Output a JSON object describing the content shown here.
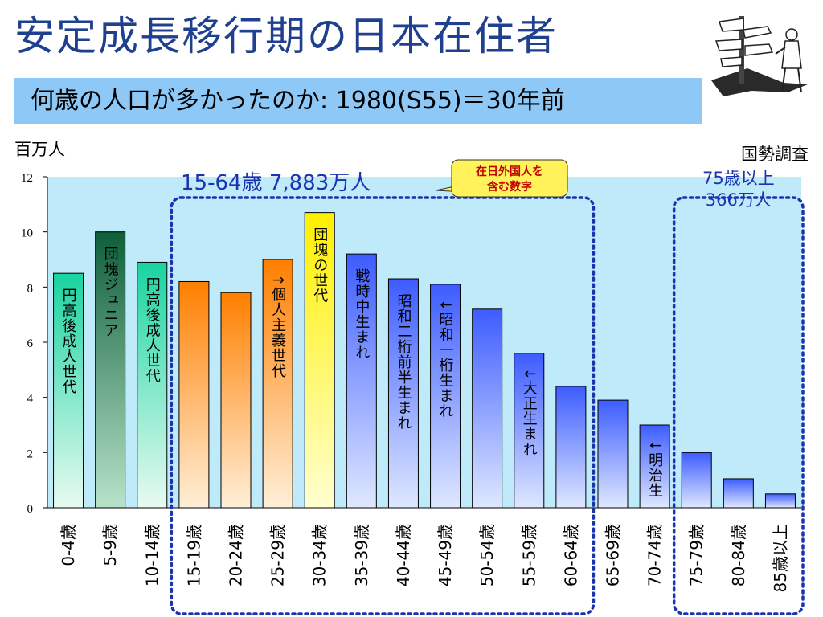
{
  "title": "安定成長移行期の日本在住者",
  "subtitle": "何歳の人口が多かったのか: 1980(S55)＝30年前",
  "icons": {
    "clipart": "signpost-person-icon"
  },
  "chart_data": {
    "type": "bar",
    "ylabel": "百万人",
    "source": "国勢調査",
    "ylim": [
      0,
      12
    ],
    "yticks": [
      0,
      2,
      4,
      6,
      8,
      10,
      12
    ],
    "grid": false,
    "categories": [
      "0-4歳",
      "5-9歳",
      "10-14歳",
      "15-19歳",
      "20-24歳",
      "25-29歳",
      "30-34歳",
      "35-39歳",
      "40-44歳",
      "45-49歳",
      "50-54歳",
      "55-59歳",
      "60-64歳",
      "65-69歳",
      "70-74歳",
      "75-79歳",
      "80-84歳",
      "85歳以上"
    ],
    "values": [
      8.5,
      10.0,
      8.9,
      8.2,
      7.8,
      9.0,
      10.7,
      9.2,
      8.3,
      8.1,
      7.2,
      5.6,
      4.4,
      3.9,
      3.0,
      2.0,
      1.05,
      0.5
    ],
    "bar_labels": [
      "円高後成人世代",
      "団塊ジュニア",
      "円高後成人世代",
      "",
      "",
      "↑個人主義世代",
      "団塊の世代",
      "戦時中生まれ",
      "昭和二桁前半生まれ",
      "↓昭和一桁生まれ",
      "",
      "↓大正生まれ",
      "",
      "",
      "↓明治生",
      "",
      "",
      ""
    ],
    "bar_fills": [
      "mint",
      "darkgreen",
      "mint",
      "orange",
      "orange",
      "orange",
      "yellow",
      "blue",
      "blue",
      "blue",
      "blue",
      "blue",
      "blue",
      "blue",
      "blue",
      "blue",
      "blue",
      "blue"
    ],
    "groups": [
      {
        "label": "15-64歳 7,883万人",
        "from": 3,
        "to": 12
      },
      {
        "label_line1": "75歳以上",
        "label_line2": "366万人",
        "from": 15,
        "to": 17
      }
    ],
    "callout": "在日外国人を含む数字",
    "colors": {
      "plot_bg": "#bfeaf9",
      "mint_top": "#19d3a0",
      "mint_bottom": "#e8fbf1",
      "darkgreen_top": "#0f5e3a",
      "darkgreen_bottom": "#b7e3ca",
      "orange_top": "#ff7f00",
      "orange_bottom": "#ffefd8",
      "yellow_top": "#ffef00",
      "yellow_bottom": "#ffffd0",
      "blue_top": "#3d5cff",
      "blue_bottom": "#dfe8ff",
      "group_border": "#1a33b0",
      "group_text": "#1a33b0",
      "callout_fill": "#fff25a",
      "callout_text": "#c00000"
    }
  }
}
